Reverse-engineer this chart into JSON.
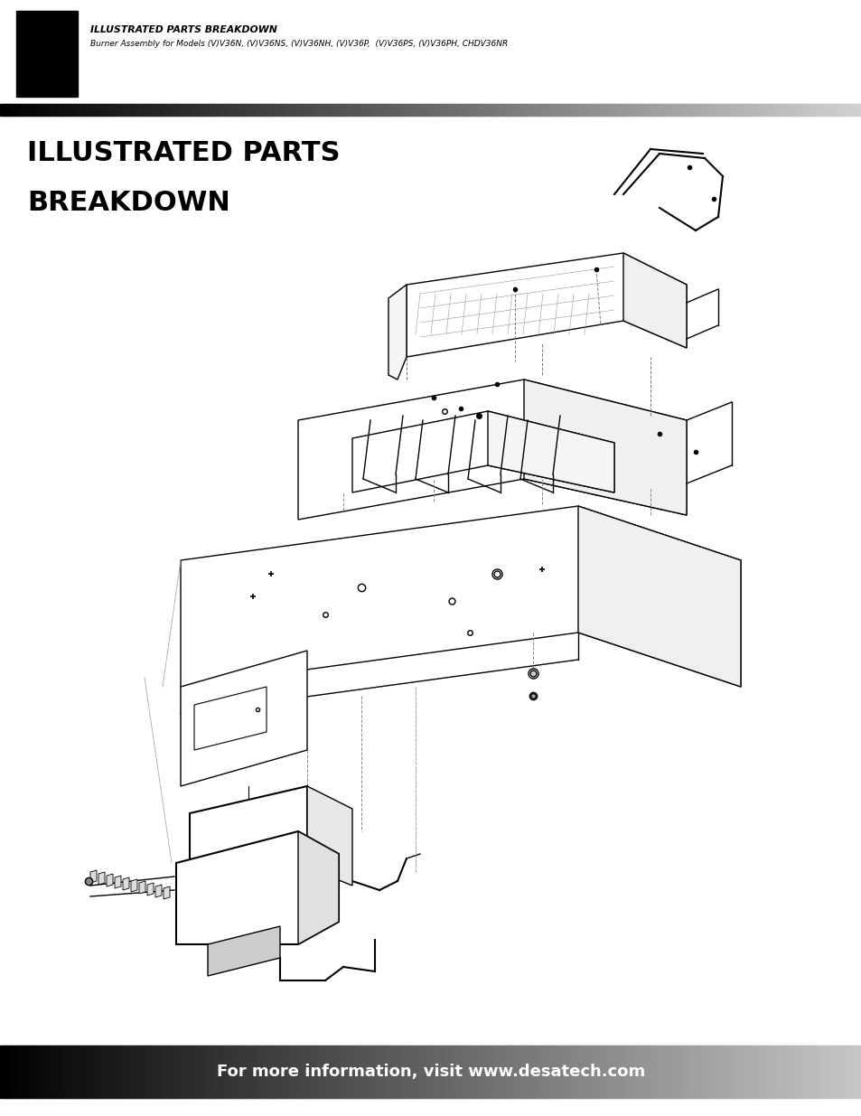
{
  "page_bg": "#ffffff",
  "header_rect_color": "#000000",
  "header_text_line1": "ILLUSTRATED PARTS BREAKDOWN",
  "header_text_line2": "Burner Assembly for Models (V)V36N, (V)V36NS, (V)V36NH, (V)V36P,  (V)V36PS, (V)V36PH, CHDV36NR",
  "title_line1": "ILLUSTRATED PARTS",
  "title_line2": "BREAKDOWN",
  "footer_text": "For more information, visit www.desatech.com",
  "footer_text_color": "#ffffff",
  "footer_fontsize": 13,
  "title_fontsize": 22
}
